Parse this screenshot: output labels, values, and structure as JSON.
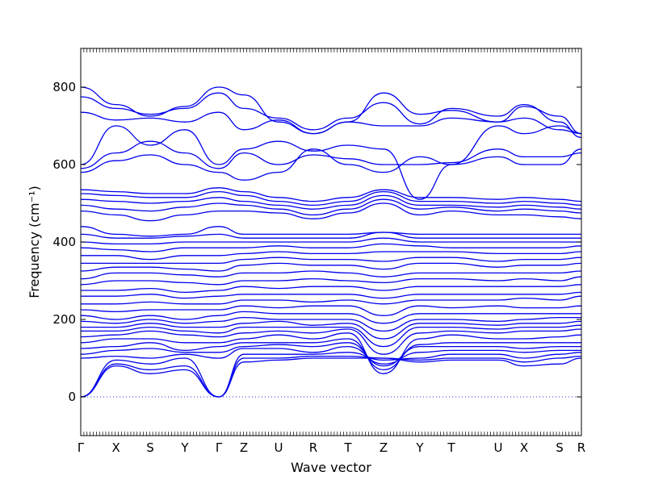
{
  "chart_data": {
    "type": "line",
    "title": "",
    "xlabel": "Wave vector",
    "ylabel": "Frequency (cm⁻¹)",
    "ylim": [
      -100,
      900
    ],
    "yticks": [
      0,
      200,
      400,
      600,
      800
    ],
    "grid": false,
    "legend": "none",
    "line_color": "#0000ee",
    "zero_line_color": "#2b2bd6",
    "kpath": [
      {
        "label": "Γ",
        "x": 0.0
      },
      {
        "label": "X",
        "x": 0.0703
      },
      {
        "label": "S",
        "x": 0.1387
      },
      {
        "label": "Y",
        "x": 0.2081
      },
      {
        "label": "Γ",
        "x": 0.2758
      },
      {
        "label": "Z",
        "x": 0.3258
      },
      {
        "label": "U",
        "x": 0.3952
      },
      {
        "label": "R",
        "x": 0.4645
      },
      {
        "label": "T",
        "x": 0.5339
      },
      {
        "label": "Z",
        "x": 0.6048
      },
      {
        "label": "Y",
        "x": 0.6774
      },
      {
        "label": "T",
        "x": 0.7403
      },
      {
        "label": "U",
        "x": 0.8339
      },
      {
        "label": "X",
        "x": 0.8855
      },
      {
        "label": "S",
        "x": 0.9565
      },
      {
        "label": "R",
        "x": 1.0
      }
    ],
    "series": [
      {
        "y": [
          0,
          80,
          60,
          70,
          0,
          90,
          95,
          100,
          100,
          100,
          90,
          95,
          95,
          80,
          85,
          100
        ]
      },
      {
        "y": [
          0,
          85,
          70,
          80,
          0,
          100,
          100,
          105,
          105,
          100,
          95,
          100,
          100,
          90,
          100,
          105
        ]
      },
      {
        "y": [
          0,
          95,
          85,
          100,
          0,
          110,
          110,
          110,
          115,
          95,
          100,
          110,
          110,
          100,
          110,
          115
        ]
      },
      {
        "y": [
          100,
          105,
          100,
          110,
          100,
          125,
          125,
          115,
          130,
          85,
          115,
          120,
          120,
          115,
          120,
          120
        ]
      },
      {
        "y": [
          110,
          120,
          125,
          115,
          115,
          130,
          135,
          130,
          140,
          80,
          130,
          130,
          130,
          125,
          130,
          130
        ]
      },
      {
        "y": [
          125,
          130,
          140,
          120,
          130,
          140,
          140,
          140,
          150,
          70,
          135,
          140,
          140,
          140,
          140,
          140
        ]
      },
      {
        "y": [
          140,
          150,
          150,
          140,
          140,
          150,
          160,
          150,
          165,
          60,
          150,
          160,
          150,
          150,
          155,
          160
        ]
      },
      {
        "y": [
          155,
          160,
          170,
          160,
          155,
          165,
          170,
          165,
          175,
          110,
          165,
          170,
          165,
          170,
          170,
          175
        ]
      },
      {
        "y": [
          170,
          170,
          180,
          170,
          165,
          180,
          180,
          180,
          180,
          130,
          180,
          180,
          175,
          180,
          180,
          185
        ]
      },
      {
        "y": [
          180,
          180,
          190,
          180,
          180,
          190,
          195,
          185,
          190,
          150,
          190,
          190,
          185,
          190,
          190,
          195
        ]
      },
      {
        "y": [
          195,
          190,
          200,
          190,
          195,
          205,
          200,
          200,
          200,
          170,
          200,
          200,
          195,
          200,
          205,
          205
        ]
      },
      {
        "y": [
          210,
          200,
          210,
          200,
          210,
          220,
          215,
          215,
          215,
          190,
          215,
          215,
          215,
          215,
          215,
          215
        ]
      },
      {
        "y": [
          225,
          220,
          225,
          225,
          225,
          235,
          230,
          235,
          235,
          210,
          235,
          230,
          235,
          230,
          230,
          235
        ]
      },
      {
        "y": [
          240,
          240,
          245,
          240,
          240,
          250,
          250,
          245,
          250,
          240,
          250,
          250,
          250,
          255,
          250,
          260
        ]
      },
      {
        "y": [
          260,
          260,
          265,
          255,
          260,
          265,
          265,
          265,
          265,
          255,
          265,
          265,
          265,
          265,
          265,
          270
        ]
      },
      {
        "y": [
          275,
          275,
          280,
          270,
          275,
          285,
          280,
          285,
          285,
          275,
          285,
          285,
          285,
          285,
          285,
          290
        ]
      },
      {
        "y": [
          290,
          300,
          300,
          295,
          290,
          300,
          300,
          305,
          300,
          295,
          305,
          305,
          300,
          305,
          300,
          310
        ]
      },
      {
        "y": [
          305,
          320,
          320,
          315,
          310,
          320,
          320,
          325,
          320,
          310,
          320,
          320,
          320,
          320,
          320,
          325
        ]
      },
      {
        "y": [
          325,
          335,
          335,
          330,
          325,
          340,
          345,
          340,
          340,
          330,
          345,
          345,
          335,
          340,
          340,
          345
        ]
      },
      {
        "y": [
          345,
          345,
          345,
          345,
          345,
          355,
          360,
          355,
          355,
          350,
          360,
          360,
          350,
          355,
          355,
          360
        ]
      },
      {
        "y": [
          365,
          365,
          355,
          365,
          365,
          370,
          375,
          370,
          370,
          375,
          375,
          375,
          370,
          370,
          370,
          375
        ]
      },
      {
        "y": [
          385,
          380,
          375,
          385,
          385,
          385,
          390,
          385,
          385,
          395,
          390,
          385,
          385,
          385,
          385,
          390
        ]
      },
      {
        "y": [
          400,
          395,
          395,
          400,
          400,
          400,
          400,
          400,
          400,
          410,
          400,
          400,
          400,
          400,
          400,
          400
        ]
      },
      {
        "y": [
          420,
          410,
          410,
          415,
          420,
          410,
          410,
          410,
          410,
          425,
          410,
          410,
          410,
          410,
          410,
          410
        ]
      },
      {
        "y": [
          440,
          420,
          415,
          420,
          440,
          420,
          420,
          420,
          420,
          425,
          420,
          420,
          420,
          420,
          420,
          420
        ]
      },
      {
        "y": [
          480,
          470,
          455,
          470,
          480,
          480,
          475,
          460,
          475,
          500,
          470,
          480,
          470,
          470,
          465,
          460
        ]
      },
      {
        "y": [
          495,
          485,
          480,
          490,
          500,
          495,
          485,
          470,
          485,
          510,
          485,
          490,
          480,
          485,
          480,
          475
        ]
      },
      {
        "y": [
          510,
          505,
          500,
          505,
          515,
          505,
          495,
          485,
          495,
          520,
          495,
          495,
          490,
          495,
          490,
          485
        ]
      },
      {
        "y": [
          525,
          520,
          515,
          515,
          530,
          520,
          505,
          495,
          505,
          530,
          505,
          505,
          500,
          505,
          500,
          495
        ]
      },
      {
        "y": [
          535,
          530,
          525,
          525,
          540,
          530,
          515,
          505,
          515,
          535,
          515,
          515,
          510,
          515,
          510,
          505
        ]
      },
      {
        "y": [
          580,
          610,
          625,
          600,
          580,
          560,
          580,
          640,
          600,
          580,
          620,
          600,
          620,
          600,
          600,
          640
        ]
      },
      {
        "y": [
          590,
          630,
          660,
          630,
          590,
          630,
          600,
          625,
          615,
          600,
          600,
          605,
          640,
          620,
          620,
          630
        ]
      },
      {
        "y": [
          600,
          700,
          650,
          690,
          600,
          640,
          660,
          635,
          650,
          640,
          510,
          600,
          700,
          680,
          700,
          680
        ]
      },
      {
        "y": [
          735,
          715,
          720,
          710,
          735,
          690,
          715,
          680,
          710,
          700,
          700,
          720,
          710,
          720,
          690,
          680
        ]
      },
      {
        "y": [
          775,
          745,
          730,
          745,
          785,
          745,
          720,
          690,
          720,
          760,
          705,
          745,
          725,
          755,
          710,
          670
        ]
      },
      {
        "y": [
          800,
          755,
          725,
          750,
          800,
          780,
          710,
          680,
          710,
          785,
          730,
          740,
          710,
          750,
          725,
          680
        ]
      }
    ]
  }
}
